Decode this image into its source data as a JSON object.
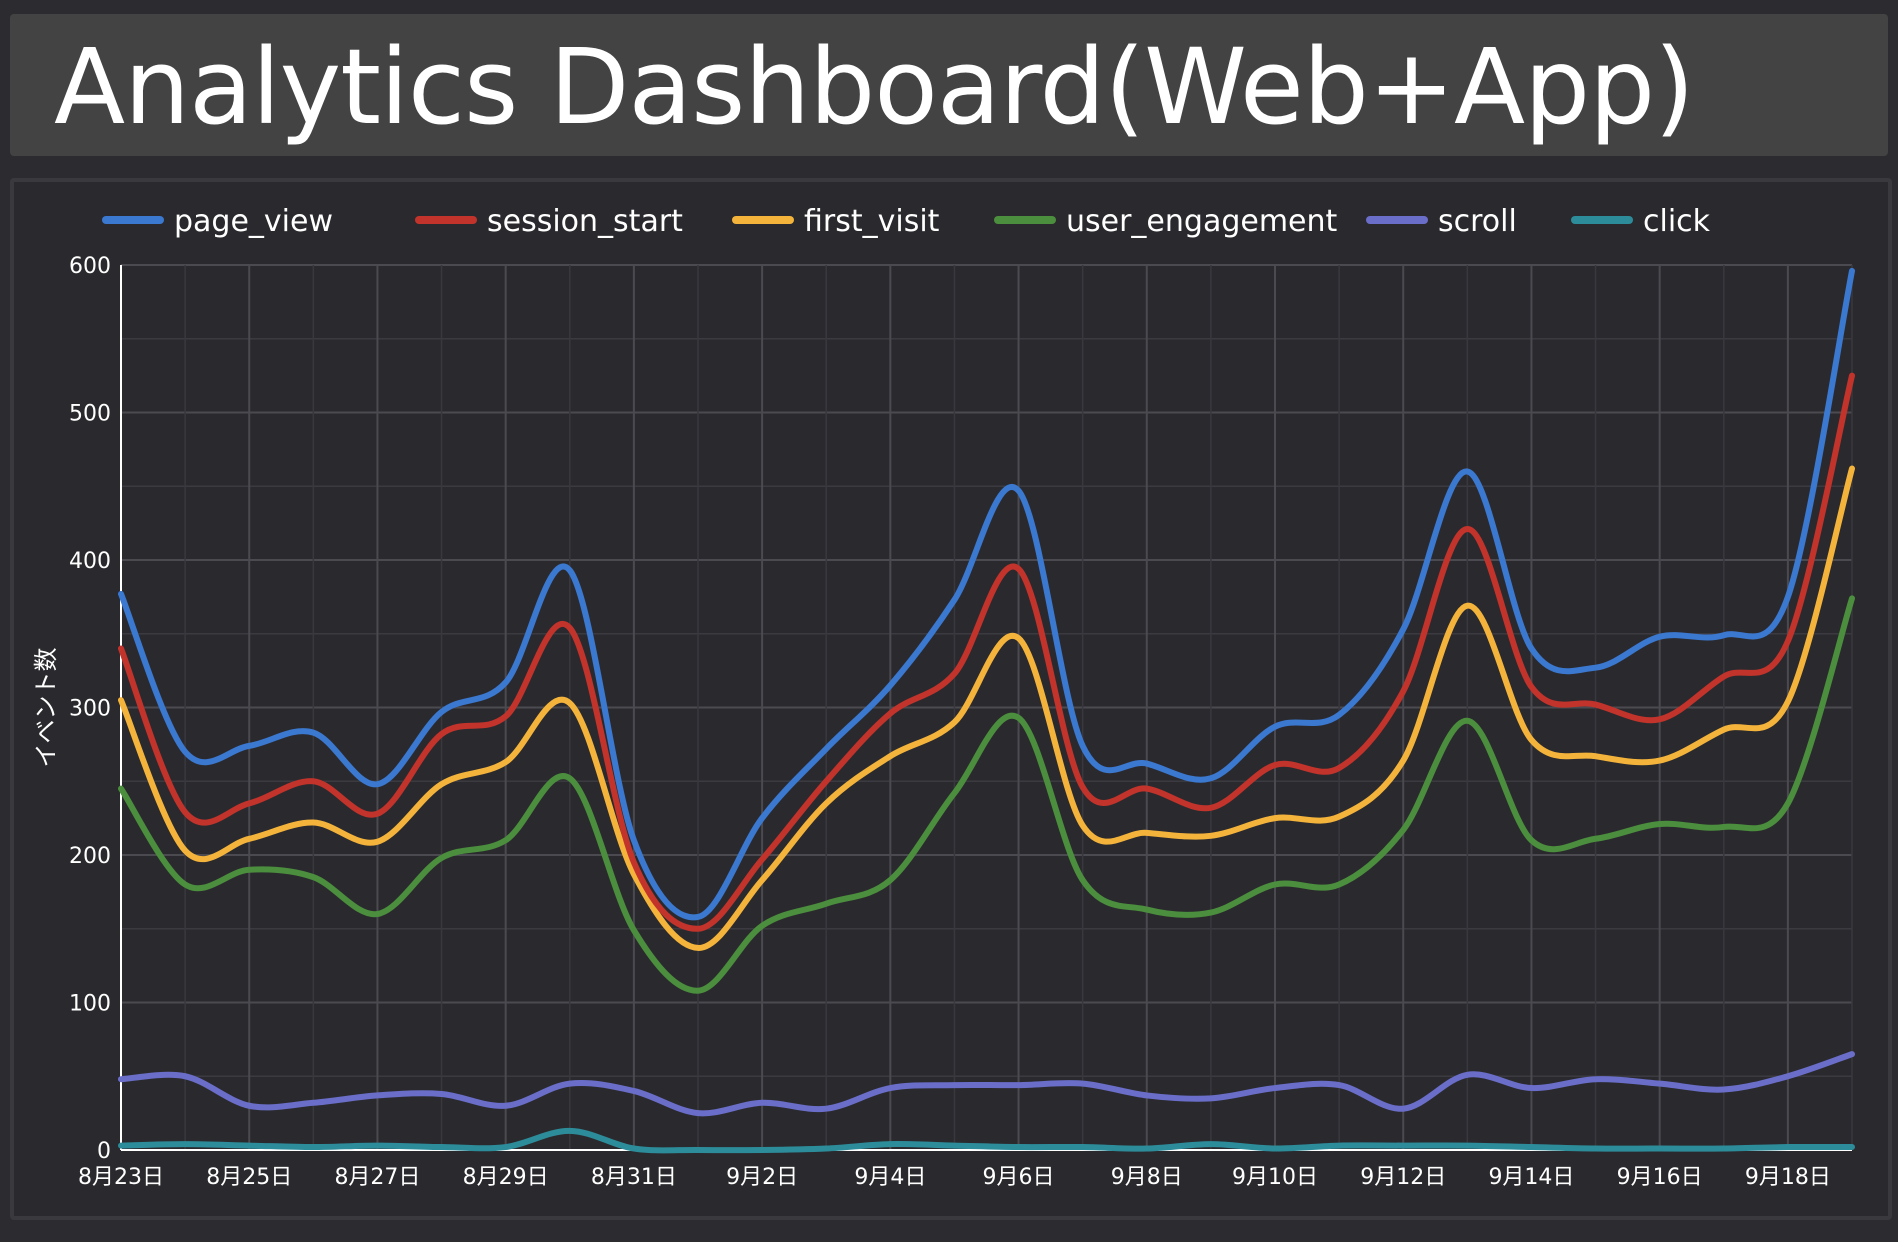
{
  "header": {
    "title": "Analytics Dashboard(Web+App)"
  },
  "chart_data": {
    "type": "line",
    "title": "",
    "xlabel": "",
    "ylabel": "イベント数",
    "ylim": [
      0,
      600
    ],
    "yticks": [
      0,
      100,
      200,
      300,
      400,
      500,
      600
    ],
    "grid": true,
    "legend_position": "top",
    "x": [
      "8月23日",
      "8月24日",
      "8月25日",
      "8月26日",
      "8月27日",
      "8月28日",
      "8月29日",
      "8月30日",
      "8月31日",
      "9月1日",
      "9月2日",
      "9月3日",
      "9月4日",
      "9月5日",
      "9月6日",
      "9月7日",
      "9月8日",
      "9月9日",
      "9月10日",
      "9月11日",
      "9月12日",
      "9月13日",
      "9月14日",
      "9月15日",
      "9月16日",
      "9月17日",
      "9月18日",
      "9月19日"
    ],
    "x_tick_labels": [
      "8月23日",
      "8月25日",
      "8月27日",
      "8月29日",
      "8月31日",
      "9月2日",
      "9月4日",
      "9月6日",
      "9月8日",
      "9月10日",
      "9月12日",
      "9月14日",
      "9月16日",
      "9月18日"
    ],
    "series": [
      {
        "name": "page_view",
        "color": "#3b78d0",
        "values": [
          377,
          270,
          274,
          283,
          248,
          297,
          317,
          393,
          210,
          158,
          225,
          272,
          315,
          373,
          447,
          274,
          262,
          252,
          287,
          295,
          353,
          460,
          340,
          327,
          348,
          349,
          375,
          596
        ]
      },
      {
        "name": "session_start",
        "color": "#c2332b",
        "values": [
          340,
          229,
          235,
          250,
          228,
          282,
          294,
          354,
          195,
          150,
          197,
          250,
          296,
          323,
          394,
          246,
          245,
          232,
          261,
          259,
          311,
          421,
          314,
          302,
          292,
          321,
          345,
          525
        ]
      },
      {
        "name": "first_visit",
        "color": "#f4b33b",
        "values": [
          305,
          203,
          211,
          222,
          209,
          248,
          263,
          303,
          187,
          137,
          183,
          235,
          267,
          290,
          347,
          220,
          215,
          213,
          225,
          226,
          264,
          369,
          278,
          267,
          264,
          285,
          304,
          462
        ]
      },
      {
        "name": "user_engagement",
        "color": "#4b8e3d",
        "values": [
          245,
          180,
          190,
          185,
          160,
          198,
          210,
          252,
          149,
          108,
          152,
          167,
          183,
          242,
          293,
          183,
          163,
          161,
          180,
          180,
          217,
          291,
          210,
          211,
          221,
          219,
          235,
          374
        ]
      },
      {
        "name": "scroll",
        "color": "#6a6ec9",
        "values": [
          48,
          50,
          30,
          32,
          37,
          38,
          30,
          45,
          40,
          25,
          32,
          28,
          42,
          44,
          44,
          45,
          37,
          35,
          42,
          44,
          28,
          51,
          42,
          48,
          45,
          41,
          50,
          65
        ]
      },
      {
        "name": "click",
        "color": "#2d8c9a",
        "values": [
          3,
          4,
          3,
          2,
          3,
          2,
          2,
          13,
          1,
          0,
          0,
          1,
          4,
          3,
          2,
          2,
          1,
          4,
          1,
          3,
          3,
          3,
          2,
          1,
          1,
          1,
          2,
          2
        ]
      }
    ]
  }
}
